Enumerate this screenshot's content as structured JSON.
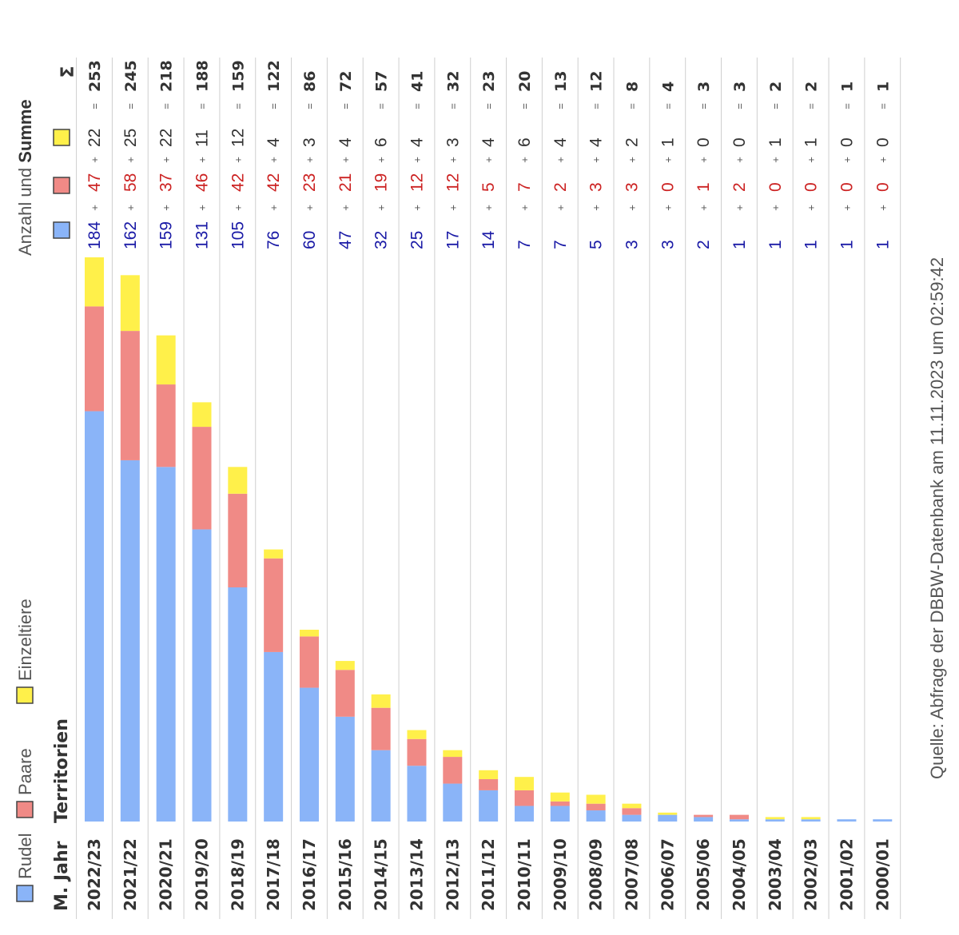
{
  "colors": {
    "rudel": "#8ab4f8",
    "paare": "#f08a86",
    "einzel": "#fff04a",
    "rudel_text": "#1a1aa6",
    "paare_text": "#cc2222",
    "einzel_text": "#333333",
    "grid": "#cfcfcf"
  },
  "header": {
    "year": "M. Jahr",
    "territorien": "Territorien",
    "anzahl": "Anzahl und ",
    "summe": "Summe",
    "sigma": "Σ"
  },
  "legend": [
    {
      "label": "Rudel",
      "color": "#8ab4f8"
    },
    {
      "label": "Paare",
      "color": "#f08a86"
    },
    {
      "label": "Einzeltiere",
      "color": "#fff04a"
    }
  ],
  "operators": {
    "plus": "+",
    "equals": "="
  },
  "source": "Quelle: Abfrage der DBBW-Datenbank am 11.11.2023 um 02:59:42",
  "chart_data": {
    "type": "bar",
    "stacked": true,
    "categories": [
      "2022/23",
      "2021/22",
      "2020/21",
      "2019/20",
      "2018/19",
      "2017/18",
      "2016/17",
      "2015/16",
      "2014/15",
      "2013/14",
      "2012/13",
      "2011/12",
      "2010/11",
      "2009/10",
      "2008/09",
      "2007/08",
      "2006/07",
      "2005/06",
      "2004/05",
      "2003/04",
      "2002/03",
      "2001/02",
      "2000/01"
    ],
    "series": [
      {
        "name": "Rudel",
        "values": [
          184,
          162,
          159,
          131,
          105,
          76,
          60,
          47,
          32,
          25,
          17,
          14,
          7,
          7,
          5,
          3,
          3,
          2,
          1,
          1,
          1,
          1,
          1
        ]
      },
      {
        "name": "Paare",
        "values": [
          47,
          58,
          37,
          46,
          42,
          42,
          23,
          21,
          19,
          12,
          12,
          5,
          7,
          2,
          3,
          3,
          0,
          1,
          2,
          0,
          0,
          0,
          0
        ]
      },
      {
        "name": "Einzeltiere",
        "values": [
          22,
          25,
          22,
          11,
          12,
          4,
          3,
          4,
          6,
          4,
          3,
          4,
          6,
          4,
          4,
          2,
          1,
          0,
          0,
          1,
          1,
          0,
          0
        ]
      }
    ],
    "totals": [
      253,
      245,
      218,
      188,
      159,
      122,
      86,
      72,
      57,
      41,
      32,
      23,
      20,
      13,
      12,
      8,
      4,
      3,
      3,
      2,
      2,
      1,
      1
    ],
    "xlabel": "M. Jahr",
    "ylabel": "Territorien",
    "ylim": [
      0,
      253
    ]
  }
}
